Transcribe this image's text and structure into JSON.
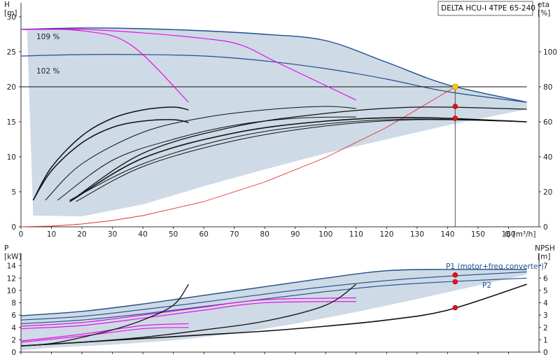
{
  "chart_data": [
    {
      "type": "line",
      "title": "DELTA HCU-I 4TPE 65-240",
      "xlabel": "Q [m³/h]",
      "x_unit": "m³/h",
      "ylabel": "H [m]",
      "y_unit": "[m]",
      "y2label": "eta [%]",
      "y2_unit": "[%]",
      "xlim": [
        0,
        170
      ],
      "ylim": [
        0,
        32
      ],
      "y2lim": [
        0,
        128
      ],
      "x_ticks": [
        0,
        10,
        20,
        30,
        40,
        50,
        60,
        70,
        80,
        90,
        100,
        110,
        120,
        130,
        140,
        150,
        160
      ],
      "y_ticks": [
        0,
        5,
        10,
        15,
        20,
        25,
        30
      ],
      "y2_ticks": [
        0,
        20,
        40,
        60,
        80,
        100
      ],
      "annotations": [
        "109 %",
        "102 %"
      ],
      "series": [
        {
          "name": "109 %",
          "x": [
            0,
            20,
            40,
            60,
            80,
            100,
            120,
            140,
            166
          ],
          "values": [
            28.2,
            28.4,
            28.3,
            28.0,
            27.5,
            26.6,
            23.5,
            20.3,
            17.8
          ]
        },
        {
          "name": "102 %",
          "x": [
            0,
            20,
            40,
            60,
            80,
            100,
            120,
            140,
            166
          ],
          "values": [
            24.4,
            24.6,
            24.6,
            24.4,
            23.7,
            22.6,
            21.1,
            19.3,
            17.8
          ]
        },
        {
          "x": [
            0,
            166
          ],
          "values": [
            20.0,
            20.0
          ]
        },
        {
          "x": [
            0,
            10,
            20,
            30,
            40,
            60,
            80,
            100,
            120,
            142.5
          ],
          "values": [
            0,
            0.1,
            0.4,
            0.9,
            1.6,
            3.6,
            6.4,
            9.9,
            14.2,
            20.0
          ]
        },
        {
          "x": [
            0,
            20,
            36,
            55
          ],
          "values": [
            28.2,
            28.0,
            26.0,
            17.8
          ]
        },
        {
          "x": [
            0,
            20,
            40,
            60,
            72,
            84,
            110
          ],
          "values": [
            28.2,
            28.2,
            27.7,
            26.9,
            26.0,
            23.5,
            18.1
          ]
        },
        {
          "x": [
            4,
            10,
            20,
            30,
            40,
            50,
            55
          ],
          "values": [
            3.8,
            8.5,
            13.0,
            15.5,
            16.7,
            17.1,
            16.7
          ]
        },
        {
          "x": [
            4,
            10,
            20,
            30,
            40,
            50,
            55
          ],
          "values": [
            3.8,
            8.0,
            12.0,
            14.2,
            15.1,
            15.3,
            14.9
          ]
        },
        {
          "x": [
            8,
            20,
            40,
            60,
            80,
            100,
            110
          ],
          "values": [
            3.8,
            9.0,
            13.5,
            15.6,
            16.7,
            17.2,
            16.9
          ]
        },
        {
          "x": [
            12,
            30,
            50,
            70,
            90,
            110
          ],
          "values": [
            3.8,
            9.5,
            12.5,
            14.5,
            15.5,
            15.7
          ]
        },
        {
          "x": [
            16,
            40,
            70,
            100,
            130,
            166
          ],
          "values": [
            3.6,
            10.5,
            14.3,
            16.2,
            17.1,
            16.8
          ]
        },
        {
          "x": [
            16,
            40,
            70,
            100,
            130,
            166
          ],
          "values": [
            3.6,
            9.8,
            13.4,
            15.1,
            15.6,
            15.0
          ]
        },
        {
          "x": [
            16,
            40,
            70,
            100,
            130,
            166
          ],
          "values": [
            3.8,
            9.0,
            12.8,
            14.7,
            15.4,
            15.0
          ]
        },
        {
          "x": [
            18,
            40,
            70,
            100,
            130,
            166
          ],
          "values": [
            3.6,
            8.6,
            12.3,
            14.4,
            15.3,
            15.0
          ]
        }
      ],
      "operating_points": [
        {
          "x": 142.5,
          "y": 20.0
        },
        {
          "x": 142.5,
          "y": 17.2
        },
        {
          "x": 142.5,
          "y": 15.5
        }
      ],
      "legend": "none",
      "grid": false,
      "colors": {
        "envelope": "#c9d6e3",
        "curve_blue": "#1f4e8c",
        "curve_magenta": "#e600e6",
        "system_red": "#e03030",
        "marker_red": "#ee1111",
        "marker_yellow": "#f5d000"
      }
    },
    {
      "type": "line",
      "xlabel": "",
      "ylabel": "P [kW]",
      "y_unit": "[kW]",
      "y2label": "NPSH [m]",
      "y2_unit": "[m]",
      "xlim": [
        0,
        170
      ],
      "ylim": [
        0,
        16
      ],
      "y2lim": [
        0,
        8
      ],
      "y_ticks": [
        0,
        2,
        4,
        6,
        8,
        10,
        12,
        14
      ],
      "y2_ticks": [
        0,
        1,
        2,
        3,
        4,
        5,
        6,
        7
      ],
      "series": [
        {
          "name": "P1 (motor+freq.converter)",
          "x": [
            0,
            20,
            40,
            60,
            80,
            100,
            120,
            140,
            166
          ],
          "values": [
            5.9,
            6.6,
            7.8,
            9.2,
            10.6,
            12.0,
            13.2,
            13.4,
            13.4
          ]
        },
        {
          "x": [
            0,
            20,
            40,
            60,
            80,
            100,
            120,
            140,
            166
          ],
          "values": [
            5.2,
            5.8,
            6.9,
            8.1,
            9.4,
            10.6,
            11.6,
            12.3,
            13.0
          ]
        },
        {
          "name": "P2",
          "x": [
            0,
            20,
            40,
            60,
            80,
            100,
            120,
            140,
            166
          ],
          "values": [
            4.6,
            5.2,
            6.2,
            7.4,
            8.6,
            9.8,
            10.8,
            11.4,
            12.0
          ]
        },
        {
          "x": [
            0,
            20,
            40,
            60,
            80,
            110
          ],
          "values": [
            4.2,
            4.8,
            6.0,
            7.3,
            8.5,
            8.8
          ]
        },
        {
          "x": [
            0,
            20,
            40,
            60,
            80,
            110
          ],
          "values": [
            3.8,
            4.3,
            5.5,
            6.8,
            8.0,
            8.2
          ]
        },
        {
          "x": [
            0,
            20,
            40,
            55
          ],
          "values": [
            1.8,
            2.9,
            4.3,
            4.6
          ]
        },
        {
          "x": [
            0,
            20,
            40,
            55
          ],
          "values": [
            1.6,
            2.6,
            3.8,
            4.0
          ]
        },
        {
          "x": [
            0,
            10,
            20,
            30,
            40,
            50,
            55
          ],
          "values": [
            0.5,
            0.7,
            1.2,
            1.8,
            2.6,
            3.8,
            5.5
          ]
        },
        {
          "x": [
            0,
            20,
            40,
            60,
            80,
            100,
            110
          ],
          "values": [
            0.5,
            0.8,
            1.2,
            1.8,
            2.5,
            3.8,
            5.5
          ]
        },
        {
          "x": [
            0,
            20,
            40,
            60,
            80,
            100,
            120,
            140,
            166
          ],
          "values": [
            0.5,
            0.8,
            1.1,
            1.4,
            1.7,
            2.1,
            2.6,
            3.4,
            5.5
          ]
        }
      ],
      "series_labels": [
        "P1 (motor+freq.converter)",
        "P2"
      ],
      "operating_points": [
        {
          "x": 142.5,
          "y": 12.5
        },
        {
          "x": 142.5,
          "y": 11.4
        },
        {
          "x": 142.5,
          "y": 3.6
        }
      ],
      "legend": "none",
      "grid": false
    }
  ]
}
